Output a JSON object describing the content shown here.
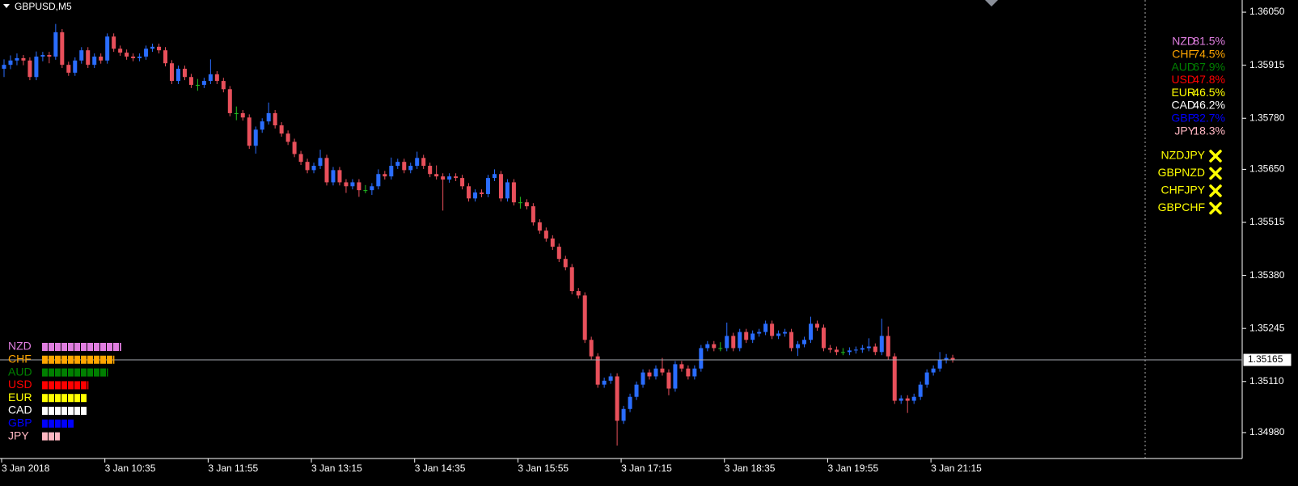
{
  "chart_data": [
    {
      "type": "candlestick",
      "title": "GBPUSD,M5",
      "up_color": "#2a6dff",
      "down_color": "#e8505b",
      "flat_color": "#22c022",
      "ylim": [
        1.34914,
        1.36081
      ],
      "yticks": [
        {
          "value": 1.3605,
          "label": "1.36050"
        },
        1.35915,
        {
          "value": 1.3578,
          "label": "1.35780"
        },
        {
          "value": 1.3565,
          "label": "1.35650"
        },
        1.35515,
        {
          "value": 1.3538,
          "label": "1.35380"
        },
        1.35245,
        {
          "value": 1.3511,
          "label": "1.35110"
        },
        {
          "value": 1.3498,
          "label": "1.34980"
        }
      ],
      "last_price": 1.35165,
      "xtick_labels": [
        "3 Jan 2018",
        "3 Jan 10:35",
        "3 Jan 11:55",
        "3 Jan 13:15",
        "3 Jan 14:35",
        "3 Jan 15:55",
        "3 Jan 17:15",
        "3 Jan 18:35",
        "3 Jan 19:55",
        "3 Jan 21:15"
      ],
      "ohlc": [
        [
          1.35906,
          1.3593,
          1.35885,
          1.35916
        ],
        [
          1.35916,
          1.3594,
          1.35905,
          1.35927
        ],
        [
          1.35927,
          1.35945,
          1.35915,
          1.35933
        ],
        [
          1.35933,
          1.35941,
          1.35915,
          1.35927
        ],
        [
          1.35927,
          1.35935,
          1.35877,
          1.35885
        ],
        [
          1.35885,
          1.3595,
          1.35877,
          1.35937
        ],
        [
          1.35937,
          1.35949,
          1.35925,
          1.35941
        ],
        [
          1.35941,
          1.35949,
          1.3592,
          1.35937
        ],
        [
          1.35937,
          1.3602,
          1.35929,
          1.35999
        ],
        [
          1.35999,
          1.36007,
          1.35908,
          1.35916
        ],
        [
          1.35916,
          1.35924,
          1.35888,
          1.35896
        ],
        [
          1.35896,
          1.35935,
          1.35888,
          1.35927
        ],
        [
          1.35927,
          1.35961,
          1.35919,
          1.35953
        ],
        [
          1.35953,
          1.35961,
          1.35908,
          1.35916
        ],
        [
          1.35916,
          1.35945,
          1.35908,
          1.35937
        ],
        [
          1.35937,
          1.35945,
          1.35919,
          1.35927
        ],
        [
          1.35927,
          1.35996,
          1.35919,
          1.35988
        ],
        [
          1.35988,
          1.35996,
          1.35949,
          1.35957
        ],
        [
          1.35957,
          1.35965,
          1.35939,
          1.35947
        ],
        [
          1.35947,
          1.35955,
          1.35929,
          1.35937
        ],
        [
          1.35937,
          1.35945,
          1.35925,
          1.35933
        ],
        [
          1.35933,
          1.35945,
          1.35925,
          1.35937
        ],
        [
          1.35937,
          1.35965,
          1.35929,
          1.35957
        ],
        [
          1.35957,
          1.3597,
          1.35949,
          1.35962
        ],
        [
          1.35962,
          1.3597,
          1.35945,
          1.35953
        ],
        [
          1.35953,
          1.35961,
          1.35912,
          1.3592
        ],
        [
          1.3592,
          1.35928,
          1.35867,
          1.35875
        ],
        [
          1.35875,
          1.35914,
          1.35867,
          1.35906
        ],
        [
          1.35906,
          1.35914,
          1.35877,
          1.35885
        ],
        [
          1.35885,
          1.35893,
          1.35857,
          1.35865
        ],
        [
          1.35865,
          1.3588,
          1.3585,
          1.35865
        ],
        [
          1.35865,
          1.35883,
          1.35857,
          1.35875
        ],
        [
          1.35875,
          1.3593,
          1.35867,
          1.35892
        ],
        [
          1.35892,
          1.359,
          1.35867,
          1.35875
        ],
        [
          1.35875,
          1.35883,
          1.35846,
          1.35854
        ],
        [
          1.35854,
          1.35862,
          1.35785,
          1.35793
        ],
        [
          1.35793,
          1.3581,
          1.35775,
          1.35793
        ],
        [
          1.35793,
          1.35801,
          1.35774,
          1.35782
        ],
        [
          1.35782,
          1.3579,
          1.35702,
          1.3571
        ],
        [
          1.3571,
          1.35759,
          1.3569,
          1.35751
        ],
        [
          1.35751,
          1.3578,
          1.35743,
          1.35772
        ],
        [
          1.35772,
          1.3582,
          1.35764,
          1.35793
        ],
        [
          1.35793,
          1.35801,
          1.35754,
          1.35762
        ],
        [
          1.35762,
          1.3577,
          1.35733,
          1.35741
        ],
        [
          1.35741,
          1.35749,
          1.35712,
          1.3572
        ],
        [
          1.3572,
          1.35728,
          1.35681,
          1.35689
        ],
        [
          1.35689,
          1.35697,
          1.35661,
          1.35669
        ],
        [
          1.35669,
          1.35677,
          1.3564,
          1.35648
        ],
        [
          1.35648,
          1.35667,
          1.3564,
          1.35659
        ],
        [
          1.35659,
          1.357,
          1.35651,
          1.35679
        ],
        [
          1.35679,
          1.35687,
          1.35609,
          1.35617
        ],
        [
          1.35617,
          1.35656,
          1.35609,
          1.35648
        ],
        [
          1.35648,
          1.35656,
          1.35609,
          1.35617
        ],
        [
          1.35617,
          1.35625,
          1.3559,
          1.35607
        ],
        [
          1.35607,
          1.35625,
          1.35599,
          1.35617
        ],
        [
          1.35617,
          1.35625,
          1.3558,
          1.35597
        ],
        [
          1.35597,
          1.3561,
          1.35589,
          1.35597
        ],
        [
          1.35597,
          1.35615,
          1.35585,
          1.35607
        ],
        [
          1.35607,
          1.3565,
          1.35599,
          1.35638
        ],
        [
          1.35638,
          1.35646,
          1.35624,
          1.35632
        ],
        [
          1.35632,
          1.3568,
          1.35624,
          1.35659
        ],
        [
          1.35659,
          1.35677,
          1.35651,
          1.35669
        ],
        [
          1.35669,
          1.35677,
          1.3564,
          1.35648
        ],
        [
          1.35648,
          1.35667,
          1.3564,
          1.35659
        ],
        [
          1.35659,
          1.35695,
          1.35651,
          1.35679
        ],
        [
          1.35679,
          1.35687,
          1.35651,
          1.35659
        ],
        [
          1.35659,
          1.35667,
          1.3563,
          1.35638
        ],
        [
          1.35638,
          1.3566,
          1.35624,
          1.35632
        ],
        [
          1.35632,
          1.3564,
          1.35545,
          1.35624
        ],
        [
          1.35624,
          1.3564,
          1.35616,
          1.35632
        ],
        [
          1.35632,
          1.3564,
          1.3562,
          1.35628
        ],
        [
          1.35628,
          1.35636,
          1.35599,
          1.35607
        ],
        [
          1.35607,
          1.35615,
          1.35568,
          1.35576
        ],
        [
          1.35576,
          1.35599,
          1.35568,
          1.35591
        ],
        [
          1.35591,
          1.35599,
          1.35579,
          1.35587
        ],
        [
          1.35587,
          1.35636,
          1.35579,
          1.35628
        ],
        [
          1.35628,
          1.3565,
          1.3562,
          1.35638
        ],
        [
          1.35638,
          1.35646,
          1.35568,
          1.35576
        ],
        [
          1.35576,
          1.35625,
          1.35568,
          1.35617
        ],
        [
          1.35617,
          1.35625,
          1.35558,
          1.35566
        ],
        [
          1.35566,
          1.3558,
          1.3555,
          1.35566
        ],
        [
          1.35566,
          1.35574,
          1.35548,
          1.35556
        ],
        [
          1.35556,
          1.35564,
          1.35507,
          1.35515
        ],
        [
          1.35515,
          1.35523,
          1.35486,
          1.35494
        ],
        [
          1.35494,
          1.35502,
          1.35466,
          1.35474
        ],
        [
          1.35474,
          1.35482,
          1.35445,
          1.35453
        ],
        [
          1.35453,
          1.35461,
          1.35414,
          1.35422
        ],
        [
          1.35422,
          1.3543,
          1.35393,
          1.35401
        ],
        [
          1.35401,
          1.35409,
          1.35332,
          1.3534
        ],
        [
          1.3534,
          1.35348,
          1.35321,
          1.35329
        ],
        [
          1.35329,
          1.35337,
          1.35208,
          1.35216
        ],
        [
          1.35216,
          1.35224,
          1.35166,
          1.35174
        ],
        [
          1.35174,
          1.35182,
          1.35094,
          1.35102
        ],
        [
          1.35102,
          1.3512,
          1.35094,
          1.35112
        ],
        [
          1.35112,
          1.35131,
          1.35104,
          1.35123
        ],
        [
          1.35123,
          1.35131,
          1.34947,
          1.3501
        ],
        [
          1.3501,
          1.35048,
          1.35002,
          1.3504
        ],
        [
          1.3504,
          1.35079,
          1.35032,
          1.35071
        ],
        [
          1.35071,
          1.3511,
          1.35063,
          1.35102
        ],
        [
          1.35102,
          1.35141,
          1.35094,
          1.35133
        ],
        [
          1.35133,
          1.35141,
          1.35115,
          1.35123
        ],
        [
          1.35123,
          1.35151,
          1.35115,
          1.35143
        ],
        [
          1.35143,
          1.3517,
          1.35125,
          1.35133
        ],
        [
          1.35133,
          1.35141,
          1.35075,
          1.35092
        ],
        [
          1.35092,
          1.35162,
          1.35084,
          1.35154
        ],
        [
          1.35154,
          1.35162,
          1.35135,
          1.35143
        ],
        [
          1.35143,
          1.35151,
          1.35115,
          1.35123
        ],
        [
          1.35123,
          1.35151,
          1.35115,
          1.35143
        ],
        [
          1.35143,
          1.35203,
          1.35135,
          1.35195
        ],
        [
          1.35195,
          1.35213,
          1.35187,
          1.35205
        ],
        [
          1.35205,
          1.35213,
          1.35187,
          1.35195
        ],
        [
          1.35195,
          1.3521,
          1.35187,
          1.35195
        ],
        [
          1.35195,
          1.3526,
          1.35187,
          1.35226
        ],
        [
          1.35226,
          1.35234,
          1.35187,
          1.35195
        ],
        [
          1.35195,
          1.35244,
          1.35187,
          1.35236
        ],
        [
          1.35236,
          1.35244,
          1.35208,
          1.35216
        ],
        [
          1.35216,
          1.3524,
          1.35208,
          1.35232
        ],
        [
          1.35232,
          1.35244,
          1.35224,
          1.35236
        ],
        [
          1.35236,
          1.35265,
          1.35228,
          1.35257
        ],
        [
          1.35257,
          1.35265,
          1.35218,
          1.35226
        ],
        [
          1.35226,
          1.3524,
          1.35218,
          1.35232
        ],
        [
          1.35232,
          1.35244,
          1.35224,
          1.35236
        ],
        [
          1.35236,
          1.35244,
          1.35187,
          1.35195
        ],
        [
          1.35195,
          1.35213,
          1.35175,
          1.35205
        ],
        [
          1.35205,
          1.35224,
          1.35197,
          1.35216
        ],
        [
          1.35216,
          1.35275,
          1.35208,
          1.35257
        ],
        [
          1.35257,
          1.35265,
          1.35239,
          1.35247
        ],
        [
          1.35247,
          1.35255,
          1.35187,
          1.35195
        ],
        [
          1.35195,
          1.35203,
          1.35183,
          1.35191
        ],
        [
          1.35191,
          1.35199,
          1.35177,
          1.35185
        ],
        [
          1.35185,
          1.35195,
          1.35177,
          1.35185
        ],
        [
          1.35185,
          1.35197,
          1.35177,
          1.35189
        ],
        [
          1.35189,
          1.35199,
          1.35181,
          1.35191
        ],
        [
          1.35191,
          1.35203,
          1.35183,
          1.35195
        ],
        [
          1.35195,
          1.3522,
          1.35187,
          1.35199
        ],
        [
          1.35199,
          1.35207,
          1.35177,
          1.35185
        ],
        [
          1.35185,
          1.3527,
          1.35177,
          1.35226
        ],
        [
          1.35226,
          1.3525,
          1.35166,
          1.35174
        ],
        [
          1.35174,
          1.35182,
          1.35053,
          1.35061
        ],
        [
          1.35061,
          1.35075,
          1.35053,
          1.35067
        ],
        [
          1.35067,
          1.35075,
          1.3503,
          1.35061
        ],
        [
          1.35061,
          1.35079,
          1.35053,
          1.35071
        ],
        [
          1.35071,
          1.3511,
          1.35063,
          1.35102
        ],
        [
          1.35102,
          1.35141,
          1.35094,
          1.35133
        ],
        [
          1.35133,
          1.35151,
          1.35125,
          1.35143
        ],
        [
          1.35143,
          1.35185,
          1.35135,
          1.35164
        ],
        [
          1.35164,
          1.3518,
          1.35156,
          1.3517
        ],
        [
          1.3517,
          1.35178,
          1.35158,
          1.35166
        ]
      ]
    },
    {
      "type": "strength",
      "categories": [
        "NZD",
        "CHF",
        "AUD",
        "USD",
        "EUR",
        "CAD",
        "GBP",
        "JPY"
      ],
      "colors": [
        "#e07ee0",
        "#ffa500",
        "#008000",
        "#ff0000",
        "#ffff00",
        "#ffffff",
        "#0000ff",
        "#ffb6c1"
      ],
      "values": [
        81.5,
        74.5,
        67.9,
        47.8,
        46.5,
        46.2,
        32.7,
        18.3
      ],
      "value_labels": [
        "81.5%",
        "74.5%",
        "67.9%",
        "47.8%",
        "46.5%",
        "46.2%",
        "32.7%",
        "18.3%"
      ]
    }
  ],
  "signals": {
    "pairs": [
      "NZDJPY",
      "GBPNZD",
      "CHFJPY",
      "GBPCHF"
    ],
    "color": "#ffff00"
  }
}
